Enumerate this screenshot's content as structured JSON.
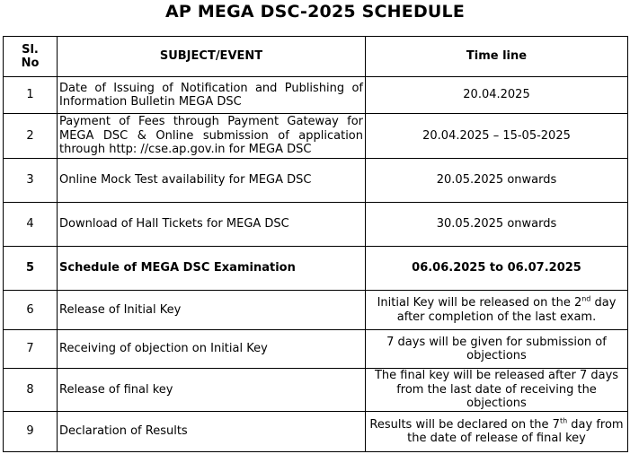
{
  "title": "AP MEGA DSC-2025 SCHEDULE",
  "headers": {
    "sl": "Sl. No",
    "subject": "SUBJECT/EVENT",
    "time": "Time line"
  },
  "rows": [
    {
      "sl": "1",
      "subject": "Date of Issuing of Notification and Publishing of Information Bulletin MEGA DSC",
      "time": {
        "text": "20.04.2025"
      }
    },
    {
      "sl": "2",
      "subject": "Payment of Fees through Payment Gateway for MEGA DSC & Online submission of application through http: //cse.ap.gov.in for MEGA DSC",
      "time": {
        "text": "20.04.2025 – 15-05-2025"
      }
    },
    {
      "sl": "3",
      "subject": "Online Mock Test availability for MEGA DSC",
      "time": {
        "text": "20.05.2025 onwards"
      }
    },
    {
      "sl": "4",
      "subject": "Download of Hall Tickets for MEGA DSC",
      "time": {
        "text": "30.05.2025 onwards"
      }
    },
    {
      "sl": "5",
      "subject": "Schedule of MEGA DSC Examination",
      "time": {
        "text": "06.06.2025 to 06.07.2025"
      },
      "bold": true
    },
    {
      "sl": "6",
      "subject": "Release of Initial Key",
      "time": {
        "text": "Initial Key will be released on the 2",
        "sup": "nd",
        "rest": " day after completion of the last exam."
      }
    },
    {
      "sl": "7",
      "subject": "Receiving of objection on Initial Key",
      "time": {
        "text": "7 days will be given for submission of objections"
      }
    },
    {
      "sl": "8",
      "subject": "Release of final key",
      "time": {
        "text": "The final key will be released after 7 days from the last date of receiving the objections"
      }
    },
    {
      "sl": "9",
      "subject": "Declaration of Results",
      "time": {
        "text": "Results will be declared on the 7",
        "sup": "th",
        "rest": " day from the date of release of final key"
      }
    }
  ]
}
